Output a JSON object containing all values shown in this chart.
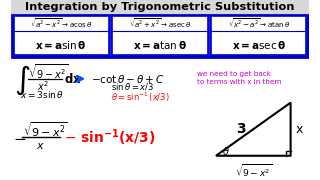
{
  "title": "Integration by Trigonometric Substitution",
  "bg_color": "#f0f0f0",
  "title_bg": "#c8c8c8",
  "table_bg": "#1a1aff",
  "cell_bg": "#1a1aff",
  "cell_text": "#ffffff",
  "cell_bold_text": "#ffffff",
  "text_color": "#000000",
  "red_color": "#ff0000",
  "blue_color": "#0055ff",
  "magenta_color": "#cc00cc",
  "white": "#ffffff",
  "dark_blue": "#0000cc",
  "note_text": "we need to get back\nto terms with x in them",
  "cell1_top": "a² - x² → acosθ",
  "cell1_bot": "x = a sin θ",
  "cell2_top": "a² + x² → asecθ",
  "cell2_bot": "x = a tan θ",
  "cell3_top": "x² - a² → atanθ",
  "cell3_bot": "x = a sec θ"
}
